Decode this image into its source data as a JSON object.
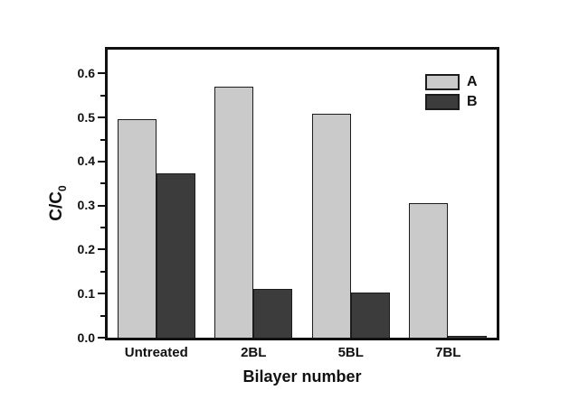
{
  "chart_data": {
    "type": "bar",
    "title": "",
    "categories": [
      "Untreated",
      "2BL",
      "5BL",
      "7BL"
    ],
    "series": [
      {
        "name": "A",
        "color": "#cacaca",
        "values": [
          0.497,
          0.571,
          0.509,
          0.305
        ]
      },
      {
        "name": "B",
        "color": "#3c3c3c",
        "values": [
          0.373,
          0.11,
          0.102,
          0.005
        ]
      }
    ],
    "xlabel": "Bilayer number",
    "ylabel": {
      "main": "C/C",
      "sub": "0"
    },
    "ylim": [
      0,
      0.654
    ],
    "yticks": [
      0.0,
      0.1,
      0.2,
      0.3,
      0.4,
      0.5,
      0.6
    ],
    "ytick_labels": [
      "0.0",
      "0.1",
      "0.2",
      "0.3",
      "0.4",
      "0.5",
      "0.6"
    ],
    "yminor_ticks": [
      0.05,
      0.15,
      0.25,
      0.35,
      0.45,
      0.55
    ],
    "legend": {
      "position": "top-right",
      "entries": [
        "A",
        "B"
      ]
    },
    "grid": false,
    "colors": {
      "bar_outline": "#1c1c1c",
      "axis": "#111111",
      "background": "#ffffff"
    }
  }
}
